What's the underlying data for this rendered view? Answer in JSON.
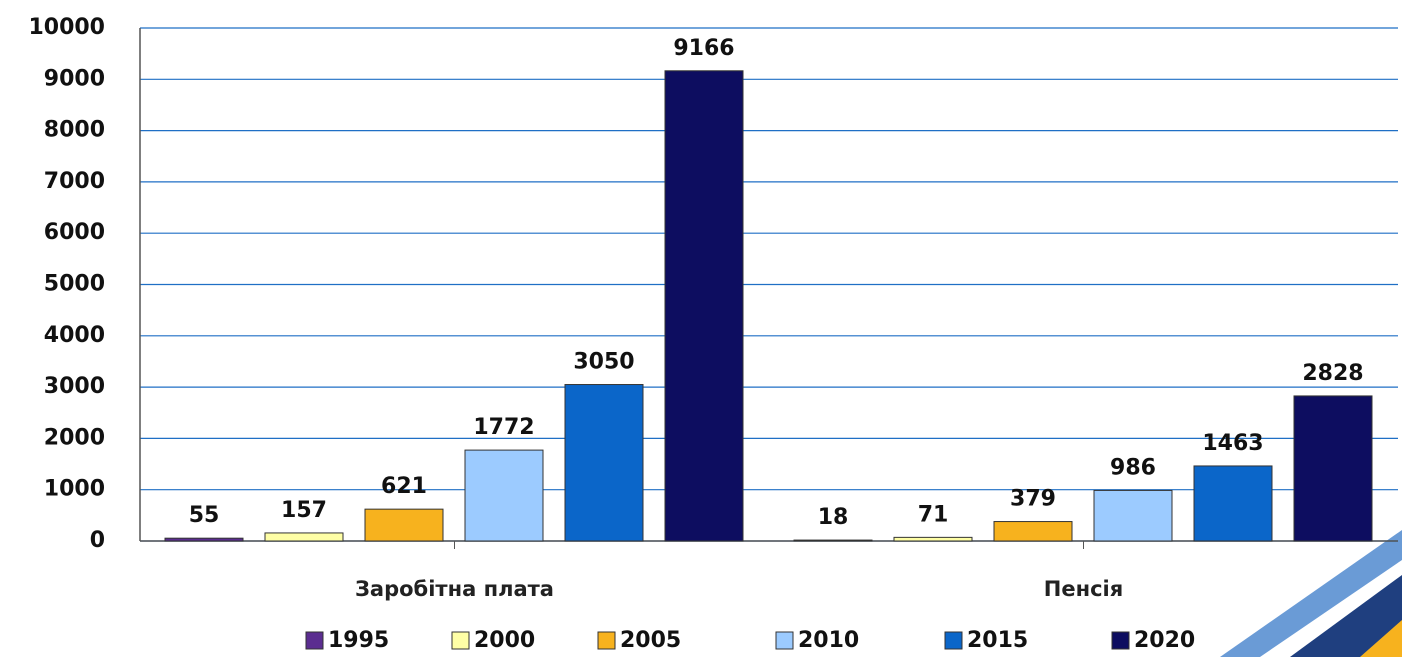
{
  "chart_data": {
    "type": "bar",
    "categories": [
      "Заробітна плата",
      "Пенсія"
    ],
    "series": [
      {
        "name": "1995",
        "color": "#5b2d90",
        "values": [
          55,
          18
        ]
      },
      {
        "name": "2000",
        "color": "#ffffa6",
        "values": [
          157,
          71
        ]
      },
      {
        "name": "2005",
        "color": "#f7b21e",
        "values": [
          621,
          379
        ]
      },
      {
        "name": "2010",
        "color": "#9ccbff",
        "values": [
          1772,
          986
        ]
      },
      {
        "name": "2015",
        "color": "#0b66c9",
        "values": [
          3050,
          1463
        ]
      },
      {
        "name": "2020",
        "color": "#0d0d60",
        "values": [
          9166,
          2828
        ]
      }
    ],
    "ylim": [
      0,
      10000
    ],
    "yticks": [
      0,
      1000,
      2000,
      3000,
      4000,
      5000,
      6000,
      7000,
      8000,
      9000,
      10000
    ],
    "grid": true,
    "legend": "bottom"
  }
}
